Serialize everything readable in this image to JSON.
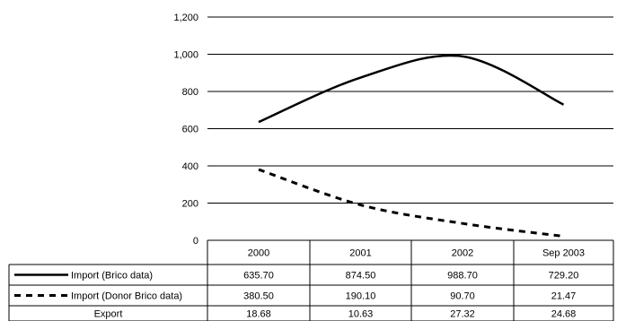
{
  "chart_data": {
    "type": "line",
    "categories": [
      "2000",
      "2001",
      "2002",
      "Sep 2003"
    ],
    "series": [
      {
        "name": "Import (Brico data)",
        "values": [
          635.7,
          874.5,
          988.7,
          729.2
        ],
        "style": "solid"
      },
      {
        "name": "Import (Donor Brico data)",
        "values": [
          380.5,
          190.1,
          90.7,
          21.47
        ],
        "style": "dashed"
      },
      {
        "name": "Export",
        "values": [
          18.68,
          10.63,
          27.32,
          24.68
        ],
        "style": "none"
      }
    ],
    "table_text": {
      "rows": [
        [
          "635.70",
          "874.50",
          "988.70",
          "729.20"
        ],
        [
          "380.50",
          "190.10",
          "90.70",
          "21.47"
        ],
        [
          "18.68",
          "10.63",
          "27.32",
          "24.68"
        ]
      ]
    },
    "yticks": [
      "0",
      "200",
      "400",
      "600",
      "800",
      "1,000",
      "1,200"
    ],
    "ylim": [
      0,
      1200
    ],
    "grid": true,
    "legend": "data-table-left",
    "title": "",
    "xlabel": "",
    "ylabel": ""
  }
}
